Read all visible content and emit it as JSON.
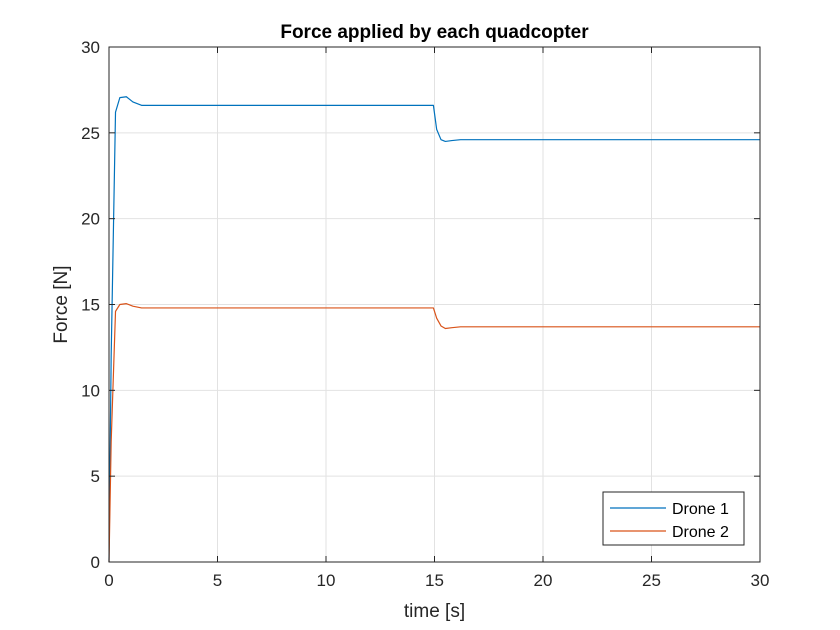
{
  "chart_data": {
    "type": "line",
    "title": "Force applied by each quadcopter",
    "xlabel": "time [s]",
    "ylabel": "Force [N]",
    "xlim": [
      0,
      30
    ],
    "ylim": [
      0,
      30
    ],
    "xticks": [
      0,
      5,
      10,
      15,
      20,
      25,
      30
    ],
    "yticks": [
      0,
      5,
      10,
      15,
      20,
      25,
      30
    ],
    "grid": true,
    "legend_position": "bottom-right",
    "series": [
      {
        "name": "Drone 1",
        "color": "#0072BD",
        "x": [
          0,
          0.1,
          0.3,
          0.5,
          0.8,
          1.1,
          1.5,
          2,
          3,
          5,
          10,
          14.95,
          15.1,
          15.3,
          15.5,
          15.8,
          16.2,
          17,
          20,
          25,
          30
        ],
        "y": [
          0,
          12.0,
          26.2,
          27.05,
          27.1,
          26.8,
          26.6,
          26.6,
          26.6,
          26.6,
          26.6,
          26.6,
          25.2,
          24.6,
          24.5,
          24.55,
          24.6,
          24.6,
          24.6,
          24.6,
          24.6
        ]
      },
      {
        "name": "Drone 2",
        "color": "#D95319",
        "x": [
          0,
          0.1,
          0.3,
          0.5,
          0.8,
          1.1,
          1.5,
          2,
          3,
          5,
          10,
          14.95,
          15.1,
          15.3,
          15.5,
          15.8,
          16.2,
          17,
          20,
          25,
          30
        ],
        "y": [
          0,
          7.0,
          14.6,
          15.0,
          15.05,
          14.9,
          14.8,
          14.8,
          14.8,
          14.8,
          14.8,
          14.8,
          14.2,
          13.75,
          13.6,
          13.65,
          13.7,
          13.7,
          13.7,
          13.7,
          13.7
        ]
      }
    ]
  }
}
